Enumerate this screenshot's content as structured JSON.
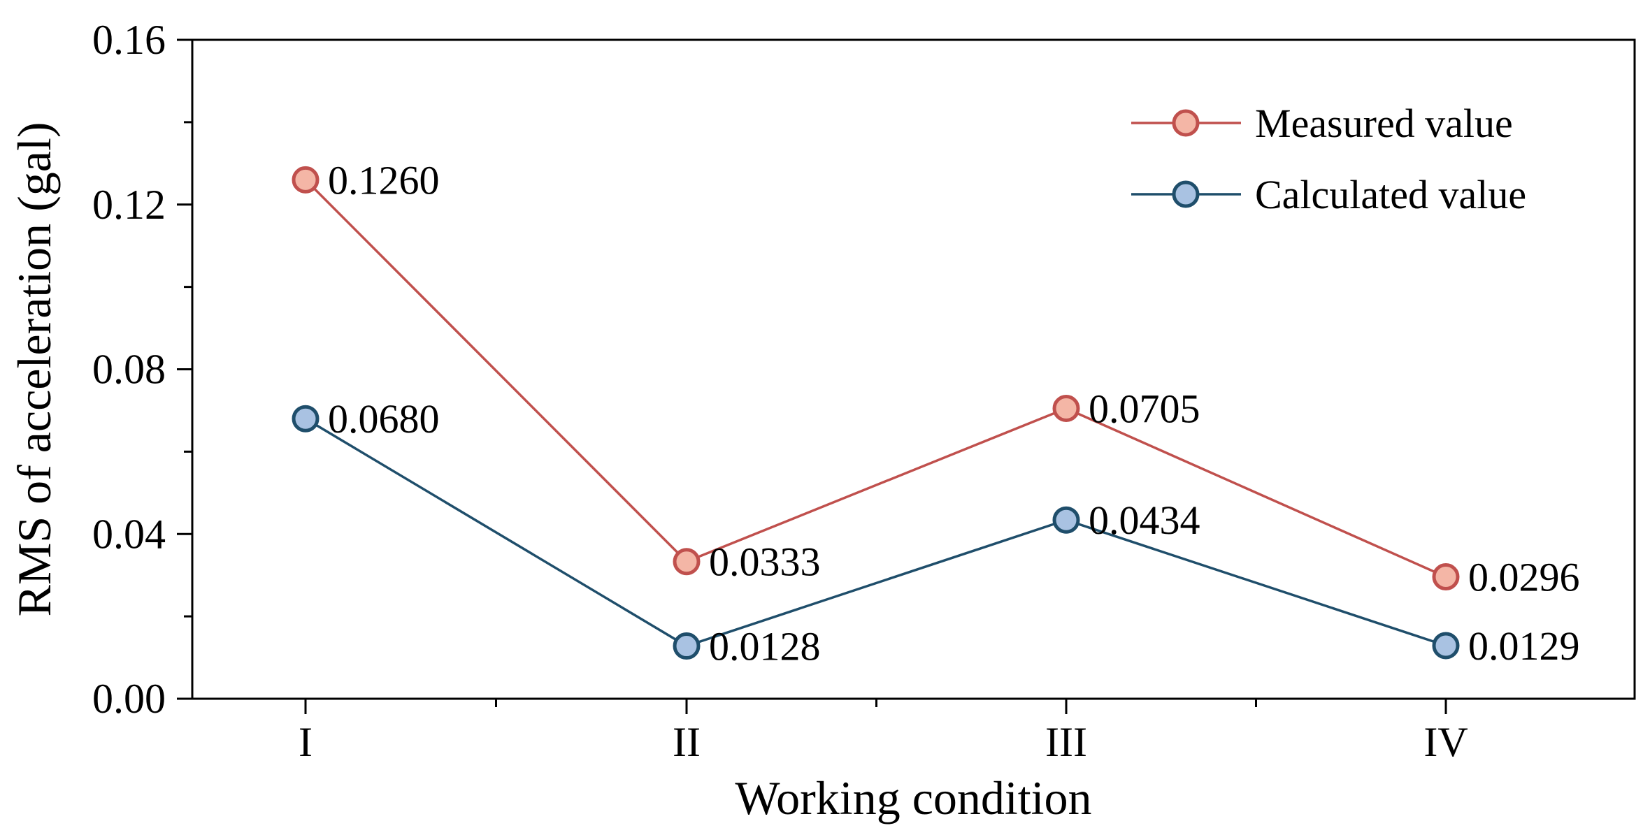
{
  "chart_data": {
    "type": "line",
    "categories": [
      "I",
      "II",
      "III",
      "IV"
    ],
    "xlabel": "Working condition",
    "ylabel": "RMS of acceleration (gal)",
    "ylim": [
      0,
      0.16
    ],
    "yticks": [
      0,
      0.04,
      0.08,
      0.12,
      0.16
    ],
    "ytick_labels": [
      "0.00",
      "0.04",
      "0.08",
      "0.12",
      "0.16"
    ],
    "legend_position": "top-right",
    "grid": false,
    "series": [
      {
        "name": "Measured value",
        "values": [
          0.126,
          0.0333,
          0.0705,
          0.0296
        ],
        "labels": [
          "0.1260",
          "0.0333",
          "0.0705",
          "0.0296"
        ],
        "line_color": "#c0504d",
        "marker_fill": "#f4b6a6",
        "marker_edge": "#c0504d"
      },
      {
        "name": "Calculated value",
        "values": [
          0.068,
          0.0128,
          0.0434,
          0.0129
        ],
        "labels": [
          "0.0680",
          "0.0128",
          "0.0434",
          "0.0129"
        ],
        "line_color": "#1f4e6b",
        "marker_fill": "#a9c2e2",
        "marker_edge": "#1f4e6b"
      }
    ]
  }
}
